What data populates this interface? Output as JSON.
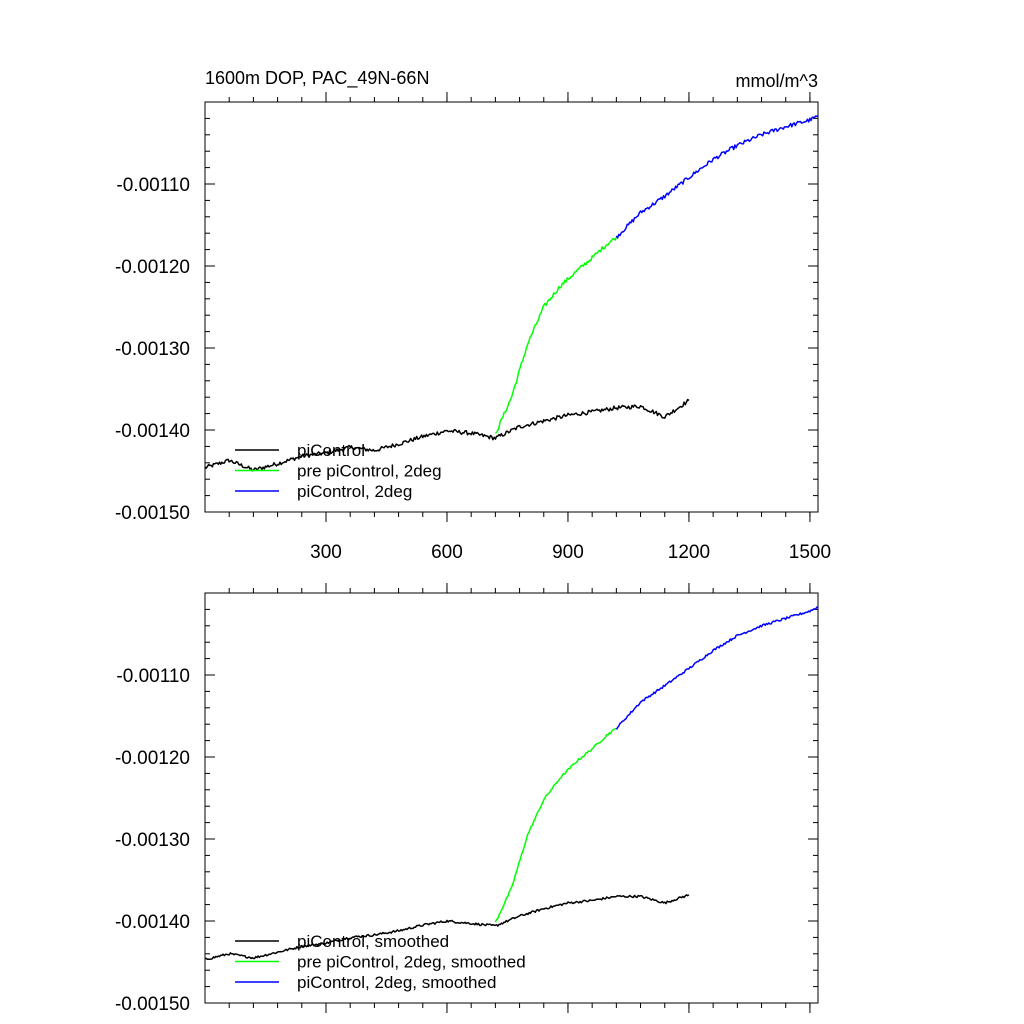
{
  "chart_data": [
    {
      "panel": "top",
      "type": "line",
      "title": "1600m DOP, PAC_49N-66N",
      "units": "mmol/m^3",
      "xlim": [
        0,
        1520
      ],
      "ylim": [
        -0.0015,
        -0.001
      ],
      "x_ticks": [
        300,
        600,
        900,
        1200,
        1500
      ],
      "x_tick_labels": [
        "300",
        "600",
        "900",
        "1200",
        "1500"
      ],
      "y_ticks": [
        -0.0015,
        -0.0014,
        -0.0013,
        -0.0012,
        -0.0011
      ],
      "y_tick_labels": [
        "-0.00150",
        "-0.00140",
        "-0.00130",
        "-0.00120",
        "-0.00110"
      ],
      "legend": [
        "piControl",
        "pre piControl, 2deg",
        "piControl, 2deg"
      ],
      "series": [
        {
          "name": "piControl",
          "color": "#000000",
          "x": [
            0,
            60,
            120,
            180,
            240,
            300,
            360,
            420,
            480,
            540,
            600,
            660,
            720,
            780,
            840,
            900,
            960,
            1020,
            1080,
            1140,
            1200
          ],
          "y": [
            -0.001446,
            -0.001437,
            -0.001449,
            -0.001441,
            -0.001432,
            -0.001428,
            -0.001421,
            -0.001425,
            -0.001417,
            -0.001408,
            -0.001401,
            -0.001404,
            -0.00141,
            -0.001396,
            -0.001389,
            -0.001382,
            -0.001378,
            -0.001373,
            -0.001371,
            -0.001384,
            -0.001364
          ]
        },
        {
          "name": "pre piControl, 2deg",
          "color": "#00ff00",
          "x": [
            720,
            760,
            800,
            840,
            880,
            920,
            960,
            1000,
            1020
          ],
          "y": [
            -0.001405,
            -0.00136,
            -0.001295,
            -0.00125,
            -0.001225,
            -0.001207,
            -0.00119,
            -0.001172,
            -0.001165
          ]
        },
        {
          "name": "piControl, 2deg",
          "color": "#0000ff",
          "x": [
            1020,
            1080,
            1140,
            1200,
            1260,
            1320,
            1380,
            1440,
            1500,
            1520
          ],
          "y": [
            -0.001165,
            -0.001135,
            -0.001115,
            -0.001092,
            -0.00107,
            -0.001053,
            -0.00104,
            -0.00103,
            -0.001022,
            -0.001017
          ]
        }
      ]
    },
    {
      "panel": "bottom",
      "type": "line",
      "xlim": [
        0,
        1520
      ],
      "ylim": [
        -0.0015,
        -0.001
      ],
      "x_ticks": [
        300,
        600,
        900,
        1200,
        1500
      ],
      "y_ticks": [
        -0.0015,
        -0.0014,
        -0.0013,
        -0.0012,
        -0.0011
      ],
      "y_tick_labels": [
        "-0.00150",
        "-0.00140",
        "-0.00130",
        "-0.00120",
        "-0.00110"
      ],
      "legend": [
        "piControl, smoothed",
        "pre piControl, 2deg, smoothed",
        "piControl, 2deg, smoothed"
      ],
      "series": [
        {
          "name": "piControl, smoothed",
          "color": "#000000",
          "x": [
            0,
            60,
            120,
            180,
            240,
            300,
            360,
            420,
            480,
            540,
            600,
            660,
            720,
            780,
            840,
            900,
            960,
            1020,
            1080,
            1140,
            1200
          ],
          "y": [
            -0.001447,
            -0.00144,
            -0.001445,
            -0.001438,
            -0.001431,
            -0.001427,
            -0.00142,
            -0.001417,
            -0.001412,
            -0.001405,
            -0.0014,
            -0.001403,
            -0.001406,
            -0.001394,
            -0.001385,
            -0.001378,
            -0.001375,
            -0.00137,
            -0.00137,
            -0.001378,
            -0.001368
          ]
        },
        {
          "name": "pre piControl, 2deg, smoothed",
          "color": "#00ff00",
          "x": [
            720,
            760,
            800,
            840,
            880,
            920,
            960,
            1000,
            1020
          ],
          "y": [
            -0.001402,
            -0.00136,
            -0.001295,
            -0.001252,
            -0.001226,
            -0.001206,
            -0.00119,
            -0.001172,
            -0.001165
          ]
        },
        {
          "name": "piControl, 2deg, smoothed",
          "color": "#0000ff",
          "x": [
            1020,
            1080,
            1140,
            1200,
            1260,
            1320,
            1380,
            1440,
            1500,
            1520
          ],
          "y": [
            -0.001165,
            -0.001133,
            -0.001113,
            -0.001092,
            -0.00107,
            -0.001052,
            -0.00104,
            -0.001031,
            -0.001022,
            -0.001017
          ]
        }
      ]
    }
  ]
}
